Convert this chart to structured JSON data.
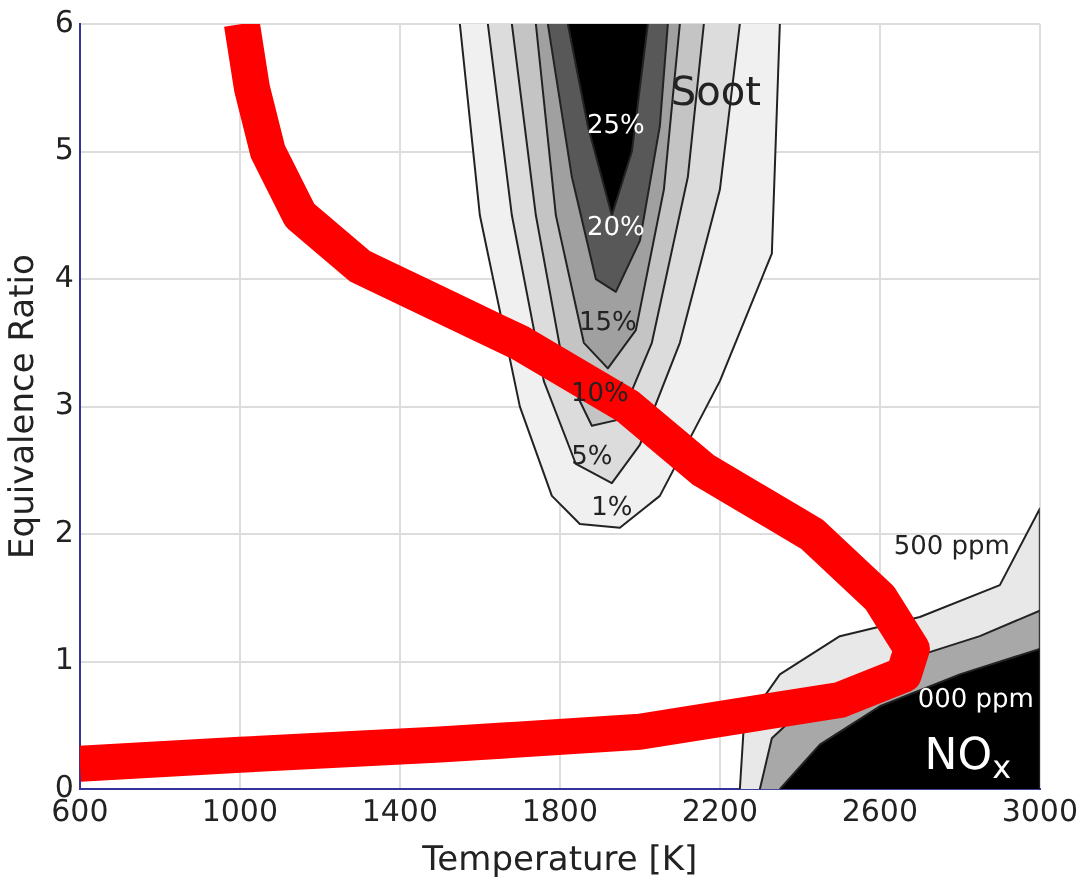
{
  "chart_data": {
    "type": "line",
    "xlabel": "Temperature [K]",
    "ylabel": "Equivalence Ratio",
    "xlim": [
      600,
      3000
    ],
    "ylim": [
      0,
      6
    ],
    "xticks": [
      600,
      1000,
      1400,
      1800,
      2200,
      2600,
      3000
    ],
    "yticks": [
      0,
      1,
      2,
      3,
      4,
      5,
      6
    ],
    "grid": true,
    "legend": false,
    "line_style": "solid",
    "marker": "none",
    "series": [
      {
        "type": "area",
        "color": "#f0f0f0",
        "x": [
          1550,
          1600,
          1700,
          1780,
          1850,
          1950,
          2050,
          2200,
          2330,
          2350
        ],
        "values": [
          6,
          4.5,
          3,
          2.3,
          2.08,
          2.05,
          2.3,
          3.2,
          4.2,
          6
        ]
      },
      {
        "type": "area",
        "color": "#dcdcdc",
        "x": [
          1620,
          1680,
          1760,
          1840,
          1930,
          2000,
          2100,
          2200,
          2250
        ],
        "values": [
          6,
          4.5,
          3.2,
          2.55,
          2.4,
          2.7,
          3.5,
          4.7,
          6
        ]
      },
      {
        "type": "area",
        "color": "#c4c4c4",
        "x": [
          1680,
          1740,
          1810,
          1880,
          1950,
          2030,
          2120,
          2160
        ],
        "values": [
          6,
          4.5,
          3.3,
          2.85,
          2.9,
          3.5,
          4.8,
          6
        ]
      },
      {
        "type": "area",
        "color": "#a0a0a0",
        "x": [
          1740,
          1790,
          1860,
          1920,
          1990,
          2060,
          2100
        ],
        "values": [
          6,
          4.5,
          3.5,
          3.3,
          3.6,
          4.7,
          6
        ]
      },
      {
        "type": "area",
        "color": "#585858",
        "x": [
          1770,
          1830,
          1890,
          1940,
          2000,
          2050,
          2070
        ],
        "values": [
          6,
          4.8,
          4,
          3.9,
          4.3,
          5.2,
          6
        ]
      },
      {
        "type": "area",
        "color": "#000000",
        "x": [
          1820,
          1870,
          1930,
          1980,
          2020
        ],
        "values": [
          6,
          5.2,
          4.5,
          5,
          6
        ]
      },
      {
        "type": "area",
        "color": "#e8e8e8",
        "x": [
          2250,
          2260,
          2350,
          2500,
          2700,
          2900,
          3000,
          3000
        ],
        "values": [
          0,
          0.5,
          0.9,
          1.2,
          1.35,
          1.6,
          2.2,
          0
        ]
      },
      {
        "type": "area",
        "color": "#a8a8a8",
        "x": [
          2300,
          2330,
          2450,
          2650,
          2850,
          3000,
          3000
        ],
        "values": [
          0,
          0.4,
          0.75,
          1,
          1.2,
          1.4,
          0
        ]
      },
      {
        "type": "area",
        "color": "#000000",
        "x": [
          2350,
          2450,
          2600,
          2800,
          3000,
          3000
        ],
        "values": [
          0,
          0.35,
          0.65,
          0.9,
          1.1,
          0
        ]
      },
      {
        "type": "line",
        "color": "#ff0000",
        "x": [
          1005,
          1030,
          1070,
          1150,
          1300,
          1500,
          1700,
          1970,
          2160,
          2430,
          2600,
          2680,
          2660,
          2500,
          2000,
          1500,
          1000,
          600
        ],
        "values": [
          6,
          5.5,
          5,
          4.5,
          4.1,
          3.8,
          3.5,
          3,
          2.5,
          2,
          1.5,
          1.1,
          0.9,
          0.7,
          0.45,
          0.35,
          0.27,
          0.2
        ]
      }
    ],
    "annotations": [
      "25%",
      "20%",
      "15%",
      "10%",
      "5%",
      "1%",
      "Soot",
      "500 ppm",
      "000 ppm",
      "NO$_{x}$"
    ]
  }
}
